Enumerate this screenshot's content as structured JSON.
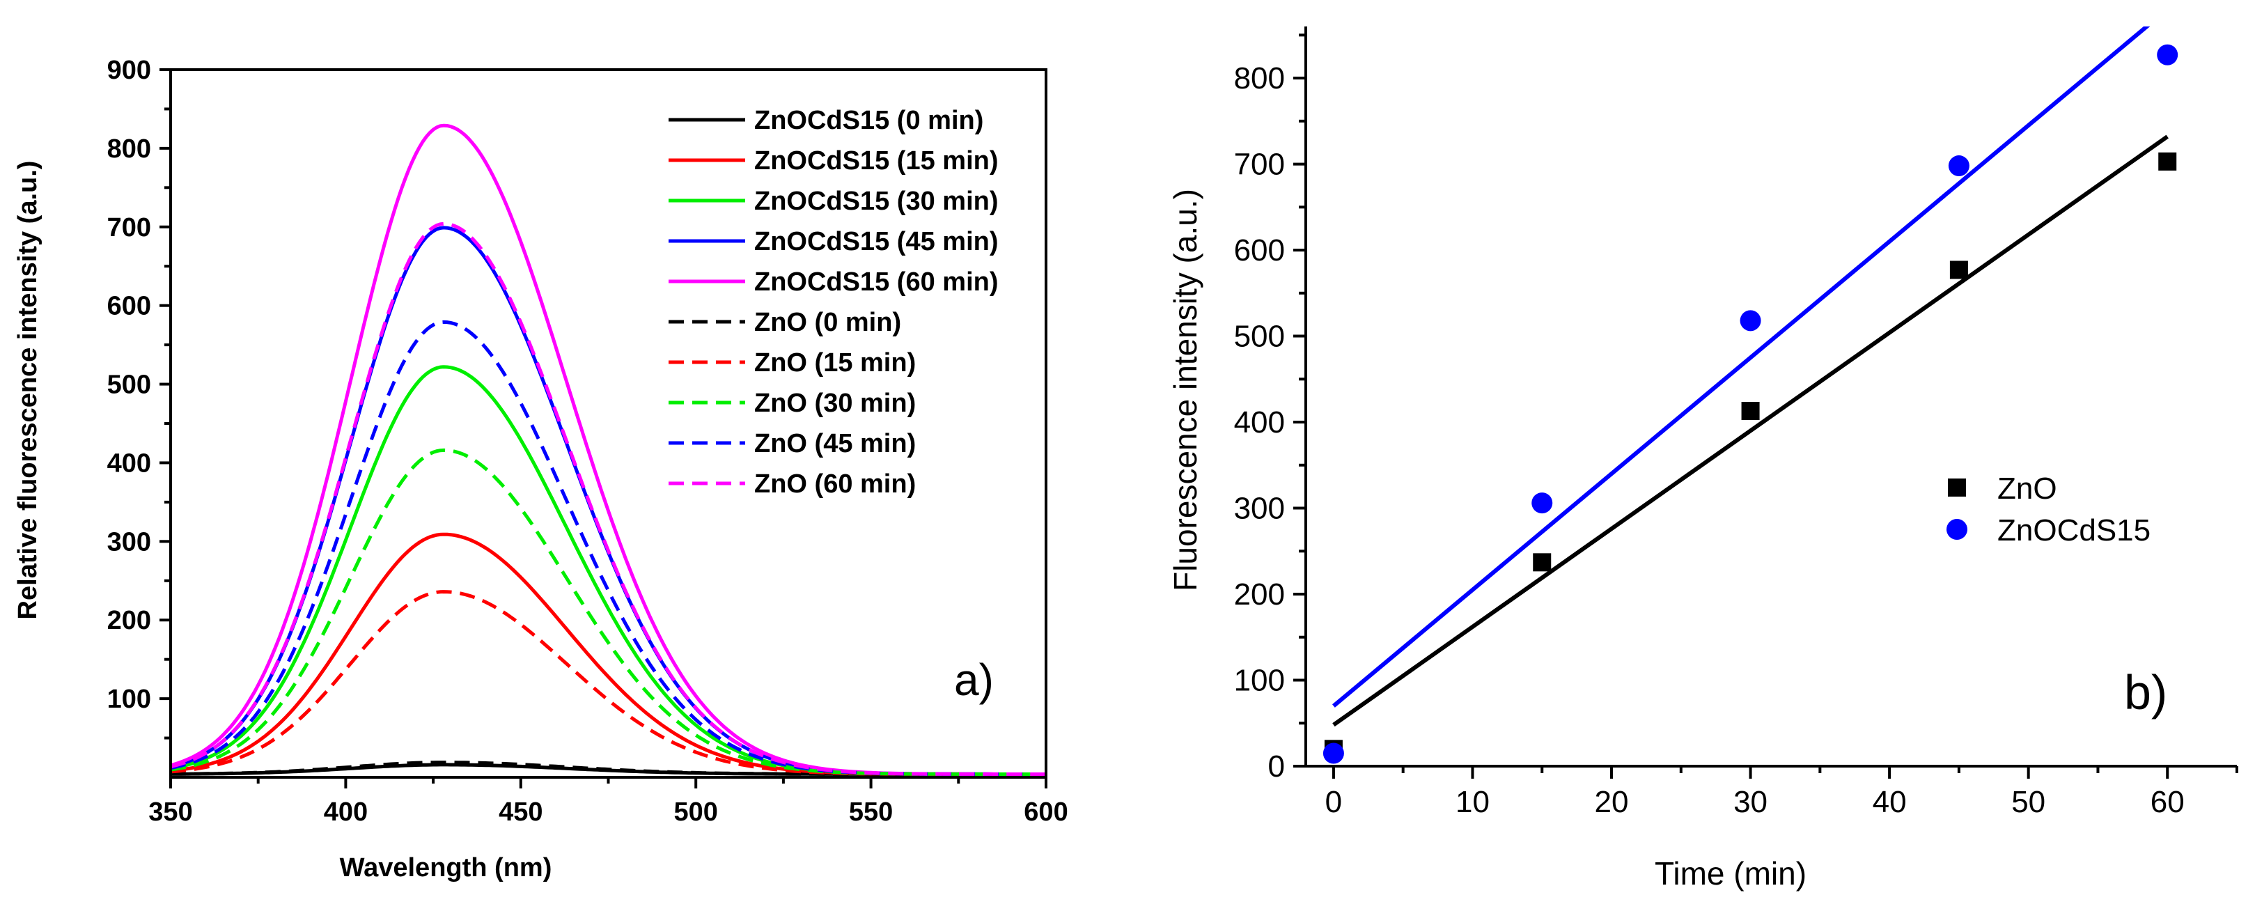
{
  "chart_data": [
    {
      "panel": "a)",
      "type": "line",
      "xlabel": "Wavelength (nm)",
      "ylabel": "Relative fluorescence intensity (a.u.)",
      "xlim": [
        350,
        600
      ],
      "ylim": [
        0,
        900
      ],
      "xticks": [
        "350",
        "400",
        "450",
        "500",
        "550",
        "600"
      ],
      "yticks": [
        "100",
        "200",
        "300",
        "400",
        "500",
        "600",
        "700",
        "800",
        "900"
      ],
      "legend_position": "top-right",
      "series": [
        {
          "name": "ZnOCdS15 (0 min)",
          "color": "#000000",
          "style": "solid",
          "peak": 12,
          "center": 428,
          "sigma": 28
        },
        {
          "name": "ZnOCdS15 (15 min)",
          "color": "#ff0000",
          "style": "solid",
          "peak": 305,
          "center": 428,
          "sigma": 28
        },
        {
          "name": "ZnOCdS15 (30 min)",
          "color": "#00ee00",
          "style": "solid",
          "peak": 518,
          "center": 428,
          "sigma": 28
        },
        {
          "name": "ZnOCdS15 (45 min)",
          "color": "#0000ff",
          "style": "solid",
          "peak": 695,
          "center": 428,
          "sigma": 28
        },
        {
          "name": "ZnOCdS15 (60 min)",
          "color": "#ff00ff",
          "style": "solid",
          "peak": 825,
          "center": 428,
          "sigma": 28
        },
        {
          "name": "ZnO (0 min)",
          "color": "#000000",
          "style": "dashed",
          "peak": 15,
          "center": 428,
          "sigma": 28
        },
        {
          "name": "ZnO (15 min)",
          "color": "#ff0000",
          "style": "dashed",
          "peak": 232,
          "center": 428,
          "sigma": 28
        },
        {
          "name": "ZnO (30 min)",
          "color": "#00ee00",
          "style": "dashed",
          "peak": 412,
          "center": 428,
          "sigma": 28
        },
        {
          "name": "ZnO (45 min)",
          "color": "#0000ff",
          "style": "dashed",
          "peak": 575,
          "center": 428,
          "sigma": 28
        },
        {
          "name": "ZnO (60 min)",
          "color": "#ff00ff",
          "style": "dashed",
          "peak": 700,
          "center": 428,
          "sigma": 28
        }
      ]
    },
    {
      "panel": "b)",
      "type": "scatter",
      "xlabel": "Time (min)",
      "ylabel": "Fluorescence intensity (a.u.)",
      "xlim": [
        -2,
        65
      ],
      "ylim": [
        0,
        860
      ],
      "xticks": [
        "0",
        "10",
        "20",
        "30",
        "40",
        "50",
        "60"
      ],
      "yticks": [
        "0",
        "100",
        "200",
        "300",
        "400",
        "500",
        "600",
        "700",
        "800"
      ],
      "legend_position": "center-right",
      "series": [
        {
          "name": "ZnO",
          "marker": "square",
          "color": "#000000",
          "x": [
            0,
            15,
            30,
            45,
            60
          ],
          "y": [
            20,
            237,
            413,
            577,
            703
          ],
          "fit": {
            "intercept": 48,
            "slope": 11.4
          }
        },
        {
          "name": "ZnOCdS15",
          "marker": "circle",
          "color": "#0000ff",
          "x": [
            0,
            15,
            30,
            45,
            60
          ],
          "y": [
            15,
            306,
            518,
            698,
            827
          ],
          "fit": {
            "intercept": 70,
            "slope": 13.5
          }
        }
      ]
    }
  ]
}
